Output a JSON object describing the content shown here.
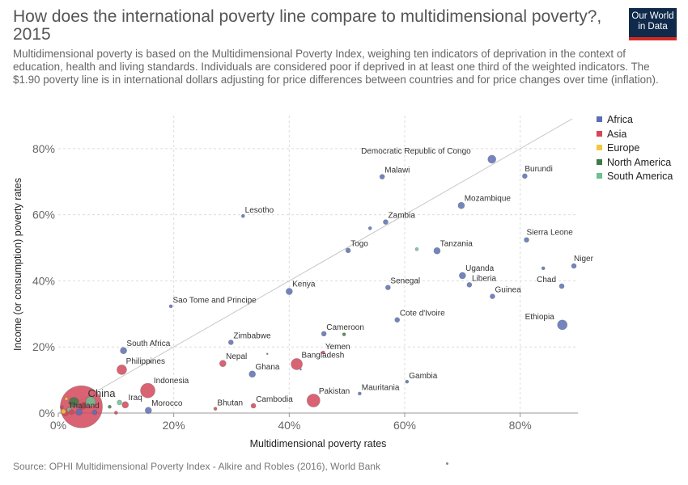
{
  "header": {
    "title": "How does the international poverty line compare to multidimensional poverty?, 2015",
    "subtitle": "Multidimensional poverty is based on the Multidimensional Poverty Index, weighing ten indicators of deprivation in the context of education, health and living standards. Individuals are considered poor if deprived in at least one third of the weighted indicators. The $1.90 poverty line is in international dollars adjusting for price differences between countries and for price changes over time (inflation).",
    "logo_line1": "Our World",
    "logo_line2": "in Data"
  },
  "footer": {
    "source": "Source: OPHI Multidimensional Poverty Index - Alkire and Robles (2016), World Bank"
  },
  "colors": {
    "Africa": "#5a6fb4",
    "Asia": "#d2475a",
    "Europe": "#f2c83a",
    "North America": "#3f7a45",
    "South America": "#6cc18f"
  },
  "chart_data": {
    "type": "scatter",
    "xlabel": "Multidimensional poverty rates",
    "ylabel": "Income (or consumption) poverty rates",
    "xlim": [
      0,
      90
    ],
    "ylim": [
      0,
      90
    ],
    "xticks": [
      0,
      20,
      40,
      60,
      80
    ],
    "yticks": [
      0,
      20,
      40,
      60,
      80
    ],
    "tick_format": "{v}%",
    "grid": true,
    "reference_line": [
      [
        0,
        0
      ],
      [
        89,
        89
      ]
    ],
    "legend": [
      "Africa",
      "Asia",
      "Europe",
      "North America",
      "South America"
    ],
    "legend_position": "right",
    "points": [
      {
        "label": "Democratic Republic of Congo",
        "x": 75.1,
        "y": 76.8,
        "region": "Africa",
        "size": 5
      },
      {
        "label": "Burundi",
        "x": 80.8,
        "y": 71.7,
        "region": "Africa",
        "size": 3
      },
      {
        "label": "Malawi",
        "x": 56.1,
        "y": 71.5,
        "region": "Africa",
        "size": 3
      },
      {
        "label": "Mozambique",
        "x": 69.8,
        "y": 62.8,
        "region": "Africa",
        "size": 4
      },
      {
        "label": "Lesotho",
        "x": 32.0,
        "y": 59.6,
        "region": "Africa",
        "size": 2
      },
      {
        "label": "Zambia",
        "x": 56.7,
        "y": 57.8,
        "region": "Africa",
        "size": 3
      },
      {
        "label": "",
        "x": 54.0,
        "y": 55.9,
        "region": "Africa",
        "size": 2
      },
      {
        "label": "Sierra Leone",
        "x": 81.1,
        "y": 52.4,
        "region": "Africa",
        "size": 3
      },
      {
        "label": "Togo",
        "x": 50.2,
        "y": 49.2,
        "region": "Africa",
        "size": 3
      },
      {
        "label": "Tanzania",
        "x": 65.6,
        "y": 49.1,
        "region": "Africa",
        "size": 4
      },
      {
        "label": "",
        "x": 62.1,
        "y": 49.6,
        "region": "South America",
        "size": 2
      },
      {
        "label": "Niger",
        "x": 89.3,
        "y": 44.5,
        "region": "Africa",
        "size": 3
      },
      {
        "label": "",
        "x": 84.0,
        "y": 43.8,
        "region": "Africa",
        "size": 2
      },
      {
        "label": "Uganda",
        "x": 70.0,
        "y": 41.6,
        "region": "Africa",
        "size": 4
      },
      {
        "label": "Liberia",
        "x": 71.2,
        "y": 38.8,
        "region": "Africa",
        "size": 3
      },
      {
        "label": "Chad",
        "x": 87.2,
        "y": 38.4,
        "region": "Africa",
        "size": 3
      },
      {
        "label": "Senegal",
        "x": 57.1,
        "y": 38.0,
        "region": "Africa",
        "size": 3
      },
      {
        "label": "Kenya",
        "x": 40.0,
        "y": 36.8,
        "region": "Africa",
        "size": 4
      },
      {
        "label": "Guinea",
        "x": 75.2,
        "y": 35.3,
        "region": "Africa",
        "size": 3
      },
      {
        "label": "Sao Tome and Principe",
        "x": 19.5,
        "y": 32.3,
        "region": "Africa",
        "size": 2
      },
      {
        "label": "Cote d'Ivoire",
        "x": 58.7,
        "y": 28.2,
        "region": "Africa",
        "size": 3
      },
      {
        "label": "Ethiopia",
        "x": 87.3,
        "y": 26.7,
        "region": "Africa",
        "size": 6
      },
      {
        "label": "Cameroon",
        "x": 46.0,
        "y": 24.0,
        "region": "Africa",
        "size": 3
      },
      {
        "label": "",
        "x": 49.5,
        "y": 23.8,
        "region": "North America",
        "size": 2
      },
      {
        "label": "Zimbabwe",
        "x": 29.9,
        "y": 21.4,
        "region": "Africa",
        "size": 3
      },
      {
        "label": "South Africa",
        "x": 11.3,
        "y": 18.9,
        "region": "Africa",
        "size": 4
      },
      {
        "label": "Yemen",
        "x": 45.9,
        "y": 18.3,
        "region": "Asia",
        "size": 2
      },
      {
        "label": "",
        "x": 36.2,
        "y": 17.9,
        "region": "Africa",
        "size": 1
      },
      {
        "label": "Nepal",
        "x": 28.5,
        "y": 15.0,
        "region": "Asia",
        "size": 4
      },
      {
        "label": "Bangladesh",
        "x": 41.3,
        "y": 14.8,
        "region": "Asia",
        "size": 7
      },
      {
        "label": "",
        "x": 42.0,
        "y": 13.2,
        "region": "Africa",
        "size": 1
      },
      {
        "label": "Philippines",
        "x": 11.0,
        "y": 13.1,
        "region": "Asia",
        "size": 6
      },
      {
        "label": "Ghana",
        "x": 33.6,
        "y": 11.8,
        "region": "Africa",
        "size": 4
      },
      {
        "label": "",
        "x": 16.0,
        "y": 15.5,
        "region": "Africa",
        "size": 1
      },
      {
        "label": "Gambia",
        "x": 60.4,
        "y": 9.5,
        "region": "Africa",
        "size": 2
      },
      {
        "label": "Indonesia",
        "x": 15.5,
        "y": 6.8,
        "region": "Asia",
        "size": 9
      },
      {
        "label": "Mauritania",
        "x": 52.2,
        "y": 5.9,
        "region": "Africa",
        "size": 2
      },
      {
        "label": "Pakistan",
        "x": 44.2,
        "y": 3.8,
        "region": "Asia",
        "size": 8
      },
      {
        "label": "China",
        "x": 4.0,
        "y": 1.9,
        "region": "Asia",
        "size": 26
      },
      {
        "label": "Iraq",
        "x": 11.6,
        "y": 2.5,
        "region": "Asia",
        "size": 4
      },
      {
        "label": "Cambodia",
        "x": 33.8,
        "y": 2.2,
        "region": "Asia",
        "size": 3
      },
      {
        "label": "Bhutan",
        "x": 27.2,
        "y": 1.3,
        "region": "Asia",
        "size": 2
      },
      {
        "label": "Morocco",
        "x": 15.6,
        "y": 0.8,
        "region": "Africa",
        "size": 4
      },
      {
        "label": "Thailand",
        "x": 1.2,
        "y": 0.1,
        "region": "Asia",
        "size": 4
      },
      {
        "label": "",
        "x": 2.7,
        "y": 3.3,
        "region": "North America",
        "size": 6
      },
      {
        "label": "",
        "x": 5.6,
        "y": 3.5,
        "region": "South America",
        "size": 6
      },
      {
        "label": "",
        "x": 10.6,
        "y": 3.2,
        "region": "South America",
        "size": 3
      },
      {
        "label": "",
        "x": 8.9,
        "y": 1.9,
        "region": "North America",
        "size": 2
      },
      {
        "label": "",
        "x": 4.2,
        "y": 2.1,
        "region": "Asia",
        "size": 4
      },
      {
        "label": "",
        "x": 1.4,
        "y": 4.3,
        "region": "Europe",
        "size": 2
      },
      {
        "label": "",
        "x": 0.6,
        "y": 1.8,
        "region": "Asia",
        "size": 2
      },
      {
        "label": "",
        "x": 0.9,
        "y": 0.5,
        "region": "Europe",
        "size": 3
      },
      {
        "label": "",
        "x": 1.9,
        "y": 1.0,
        "region": "South America",
        "size": 3
      },
      {
        "label": "",
        "x": 2.3,
        "y": 0.3,
        "region": "Asia",
        "size": 3
      },
      {
        "label": "",
        "x": 3.6,
        "y": 0.3,
        "region": "Africa",
        "size": 4
      },
      {
        "label": "",
        "x": 6.3,
        "y": 0.2,
        "region": "Africa",
        "size": 3
      },
      {
        "label": "",
        "x": 10.0,
        "y": 0.1,
        "region": "Asia",
        "size": 2
      }
    ]
  }
}
